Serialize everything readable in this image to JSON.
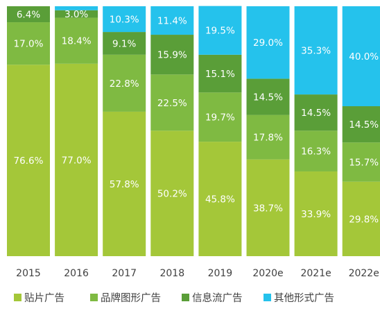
{
  "chart_data": {
    "type": "bar",
    "stacked": true,
    "normalized": true,
    "categories": [
      "2015",
      "2016",
      "2017",
      "2018",
      "2019",
      "2020e",
      "2021e",
      "2022e"
    ],
    "series": [
      {
        "name": "贴片广告",
        "color": "#a4c739",
        "values": [
          76.6,
          77.0,
          57.8,
          50.2,
          45.8,
          38.7,
          33.9,
          29.8
        ],
        "labels": [
          "76.6%",
          "77.0%",
          "57.8%",
          "50.2%",
          "45.8%",
          "38.7%",
          "33.9%",
          "29.8%"
        ]
      },
      {
        "name": "品牌图形广告",
        "color": "#7fba42",
        "values": [
          17.0,
          18.4,
          22.8,
          22.5,
          19.7,
          17.8,
          16.3,
          15.7
        ],
        "labels": [
          "17.0%",
          "18.4%",
          "22.8%",
          "22.5%",
          "19.7%",
          "17.8%",
          "16.3%",
          "15.7%"
        ]
      },
      {
        "name": "信息流广告",
        "color": "#5a9e38",
        "values": [
          6.4,
          3.0,
          9.1,
          15.9,
          15.1,
          14.5,
          14.5,
          14.5
        ],
        "labels": [
          "6.4%",
          "3.0%",
          "9.1%",
          "15.9%",
          "15.1%",
          "14.5%",
          "14.5%",
          "14.5%"
        ]
      },
      {
        "name": "其他形式广告",
        "color": "#25c2ec",
        "values": [
          0,
          1.6,
          10.3,
          11.4,
          19.5,
          29.0,
          35.3,
          40.0
        ],
        "labels": [
          "",
          "",
          "10.3%",
          "11.4%",
          "19.5%",
          "29.0%",
          "35.3%",
          "40.0%"
        ]
      }
    ],
    "ylim": [
      0,
      100
    ],
    "legend_position": "bottom",
    "grid": false
  }
}
